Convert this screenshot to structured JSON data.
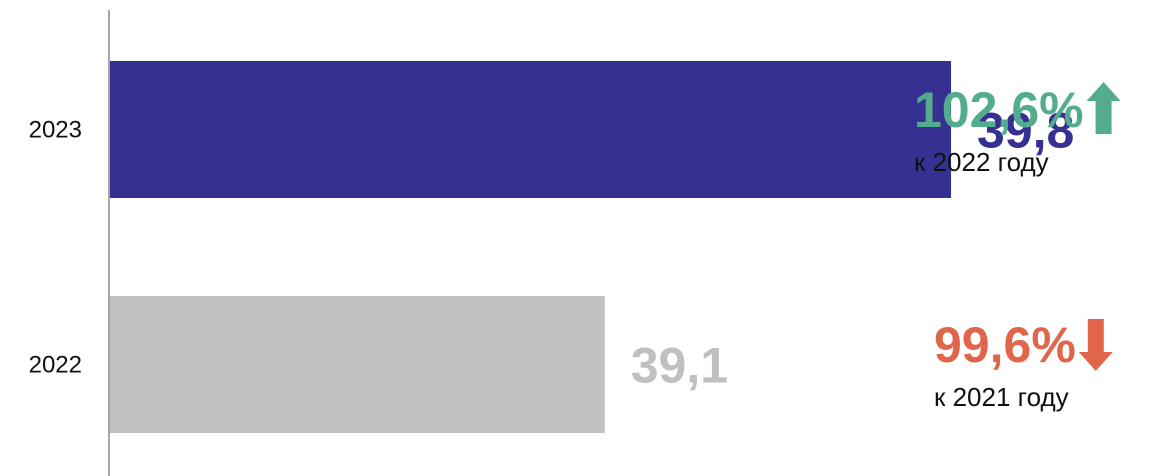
{
  "chart_data": {
    "type": "bar",
    "orientation": "horizontal",
    "categories": [
      "2023",
      "2022"
    ],
    "values": [
      39.8,
      39.1
    ],
    "value_labels": [
      "39,8",
      "39,1"
    ],
    "xlim": [
      38.1,
      40.0
    ],
    "bar_colors": [
      "#353092",
      "#c0c0c0"
    ],
    "value_label_colors": [
      "#353092",
      "#c0c0c0"
    ],
    "annotations": [
      {
        "value": "102,6%",
        "direction": "up",
        "arrow_icon": "arrow-up-icon",
        "color": "#52ac8d",
        "caption": "к 2022 году"
      },
      {
        "value": "99,6%",
        "direction": "down",
        "arrow_icon": "arrow-down-icon",
        "color": "#e0654a",
        "caption": "к 2021 году"
      }
    ],
    "grid": false
  }
}
